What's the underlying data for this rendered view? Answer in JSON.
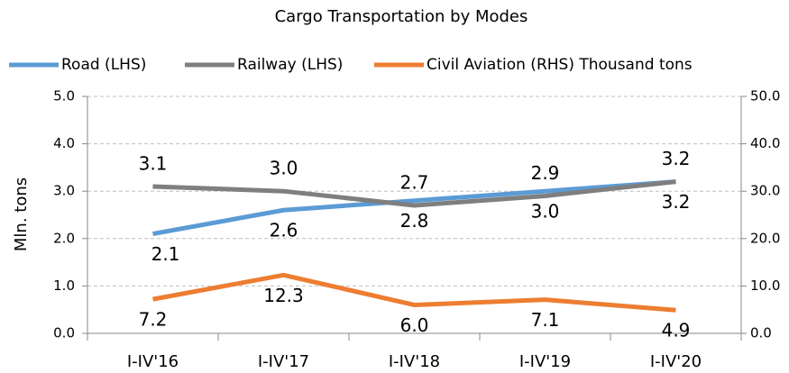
{
  "chart_data": {
    "type": "line",
    "title": "Cargo Transportation by Modes",
    "ylabel": "Mln. tons",
    "categories": [
      "I-IV'16",
      "I-IV'17",
      "I-IV'18",
      "I-IV'19",
      "I-IV'20"
    ],
    "series": [
      {
        "name": "Road (LHS)",
        "color": "#5b9bd5",
        "values": [
          2.1,
          2.6,
          2.8,
          3.0,
          3.2
        ],
        "value_labels": [
          "2.1",
          "2.6",
          "2.8",
          "3.0",
          "3.2"
        ]
      },
      {
        "name": "Railway (LHS)",
        "color": "#7f7f7f",
        "values": [
          3.1,
          3.0,
          2.7,
          2.9,
          3.2
        ],
        "value_labels": [
          "3.1",
          "3.0",
          "2.7",
          "2.9",
          "3.2"
        ]
      },
      {
        "name": "Civil Aviation (RHS) Thousand tons",
        "color": "#ed7d31",
        "axis": "y2",
        "values": [
          7.2,
          12.3,
          6.0,
          7.1,
          4.9
        ],
        "value_labels": [
          "7.2",
          "12.3",
          "6.0",
          "7.1",
          "4.9"
        ]
      }
    ],
    "ylim": [
      0,
      5
    ],
    "yticks": [
      {
        "value": 0,
        "label": "0.0"
      },
      {
        "value": 1,
        "label": "1.0"
      },
      {
        "value": 2,
        "label": "2.0"
      },
      {
        "value": 3,
        "label": "3.0"
      },
      {
        "value": 4,
        "label": "4.0"
      },
      {
        "value": 5,
        "label": "5.0"
      }
    ],
    "y2lim": [
      0,
      50
    ],
    "y2ticks": [
      {
        "value": 0,
        "label": "0.0"
      },
      {
        "value": 10,
        "label": "10.0"
      },
      {
        "value": 20,
        "label": "20.0"
      },
      {
        "value": 30,
        "label": "30.0"
      },
      {
        "value": 40,
        "label": "40.0"
      },
      {
        "value": 50,
        "label": "50.0"
      }
    ],
    "grid": true,
    "legend": "top"
  }
}
